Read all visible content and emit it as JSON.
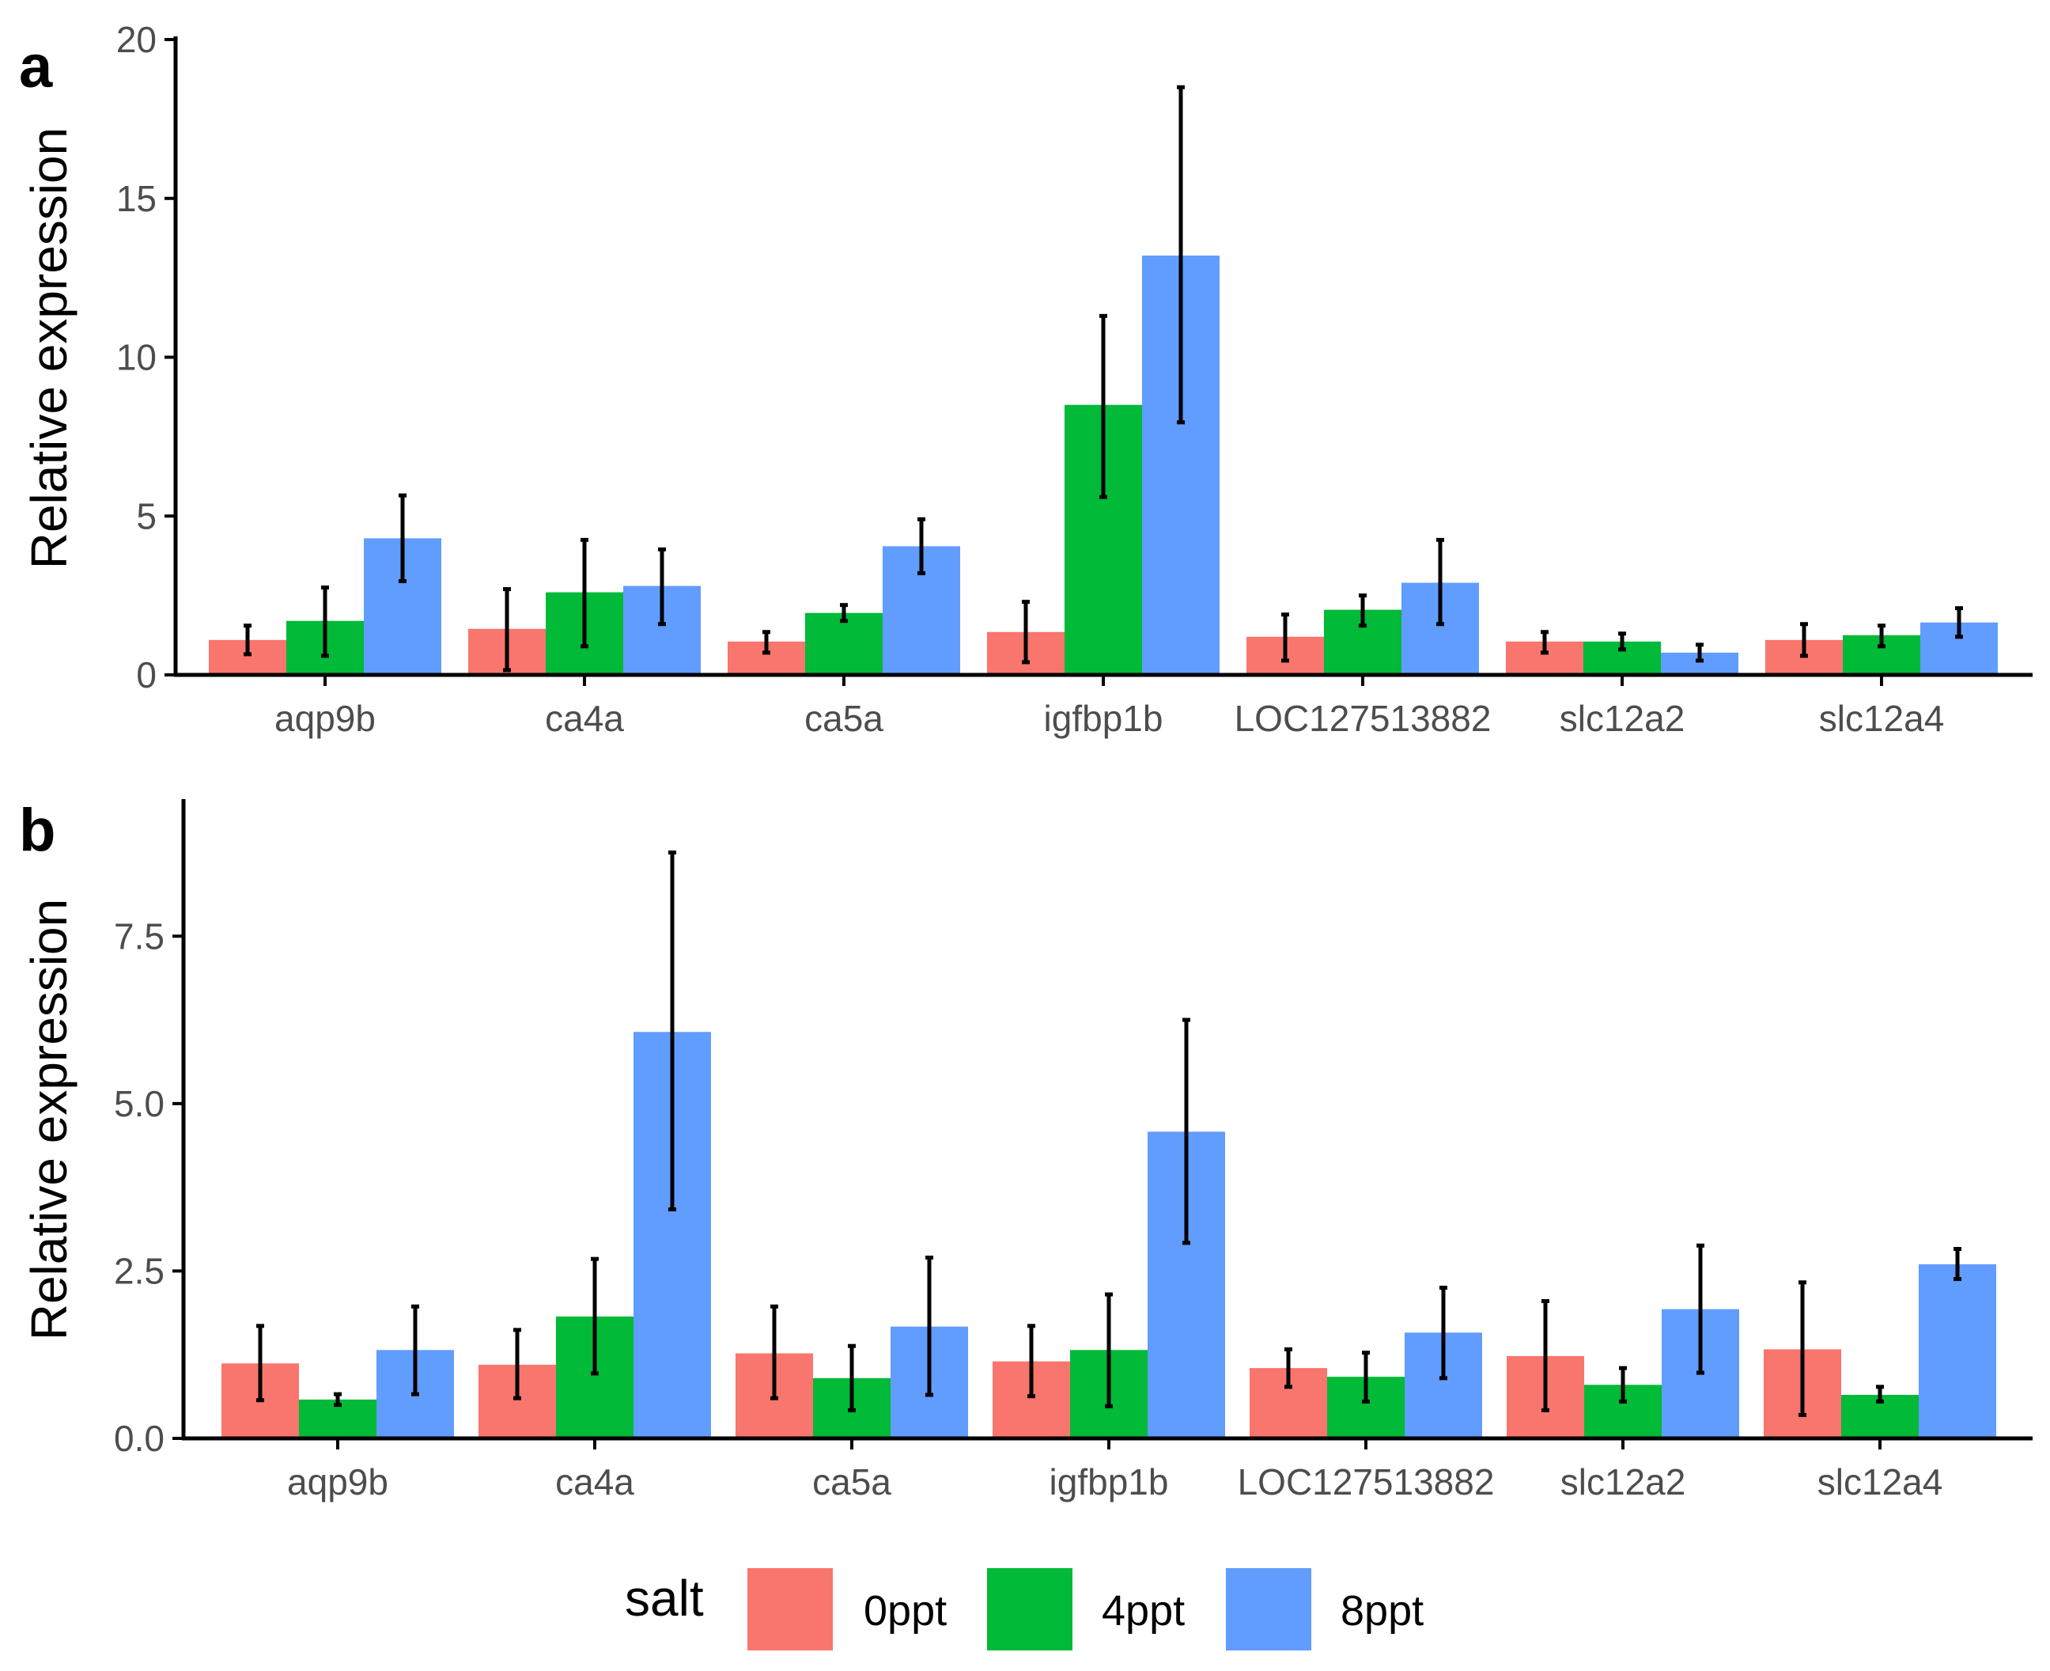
{
  "chart_data": [
    {
      "type": "bar",
      "panel": "a",
      "ylabel": "Relative expression",
      "ylim": [
        0,
        20
      ],
      "yticks": [
        0,
        5,
        10,
        15,
        20
      ],
      "ytick_labels": [
        "0",
        "5",
        "10",
        "15",
        "20"
      ],
      "categories": [
        "aqp9b",
        "ca4a",
        "ca5a",
        "igfbp1b",
        "LOC127513882",
        "slc12a2",
        "slc12a4"
      ],
      "series": [
        {
          "name": "0ppt",
          "values": [
            1.1,
            1.45,
            1.05,
            1.35,
            1.2,
            1.05,
            1.1
          ],
          "err_low": [
            0.65,
            0.15,
            0.7,
            0.4,
            0.45,
            0.7,
            0.6
          ],
          "err_high": [
            1.55,
            2.7,
            1.35,
            2.3,
            1.9,
            1.35,
            1.6
          ]
        },
        {
          "name": "4ppt",
          "values": [
            1.7,
            2.6,
            1.95,
            8.5,
            2.05,
            1.05,
            1.25
          ],
          "err_low": [
            0.6,
            0.9,
            1.7,
            5.6,
            1.55,
            0.8,
            0.9
          ],
          "err_high": [
            2.75,
            4.25,
            2.2,
            11.3,
            2.5,
            1.3,
            1.55
          ]
        },
        {
          "name": "8ppt",
          "values": [
            4.3,
            2.8,
            4.05,
            13.2,
            2.9,
            0.7,
            1.65
          ],
          "err_low": [
            2.95,
            1.6,
            3.2,
            7.95,
            1.6,
            0.45,
            1.2
          ],
          "err_high": [
            5.65,
            3.95,
            4.9,
            18.5,
            4.25,
            0.95,
            2.1
          ]
        }
      ]
    },
    {
      "type": "bar",
      "panel": "b",
      "ylabel": "Relative expression",
      "ylim": [
        0,
        9.5
      ],
      "yticks": [
        0,
        2.5,
        5,
        7.5
      ],
      "ytick_labels": [
        "0.0",
        "2.5",
        "5.0",
        "7.5"
      ],
      "categories": [
        "aqp9b",
        "ca4a",
        "ca5a",
        "igfbp1b",
        "LOC127513882",
        "slc12a2",
        "slc12a4"
      ],
      "series": [
        {
          "name": "0ppt",
          "values": [
            1.12,
            1.1,
            1.27,
            1.15,
            1.05,
            1.23,
            1.33
          ],
          "err_low": [
            0.57,
            0.6,
            0.6,
            0.63,
            0.77,
            0.42,
            0.35
          ],
          "err_high": [
            1.68,
            1.62,
            1.97,
            1.68,
            1.33,
            2.05,
            2.33
          ]
        },
        {
          "name": "4ppt",
          "values": [
            0.58,
            1.82,
            0.9,
            1.32,
            0.92,
            0.8,
            0.65
          ],
          "err_low": [
            0.5,
            0.97,
            0.42,
            0.48,
            0.55,
            0.55,
            0.55
          ],
          "err_high": [
            0.66,
            2.68,
            1.38,
            2.15,
            1.28,
            1.05,
            0.77
          ]
        },
        {
          "name": "8ppt",
          "values": [
            1.32,
            6.07,
            1.67,
            4.58,
            1.58,
            1.93,
            2.6
          ],
          "err_low": [
            0.66,
            3.42,
            0.65,
            2.92,
            0.9,
            0.98,
            2.38
          ],
          "err_high": [
            1.97,
            8.75,
            2.7,
            6.25,
            2.25,
            2.88,
            2.83
          ]
        }
      ]
    }
  ],
  "legend": {
    "title": "salt",
    "entries": [
      {
        "label": "0ppt",
        "color": "#F8766D"
      },
      {
        "label": "4ppt",
        "color": "#00BA38"
      },
      {
        "label": "8ppt",
        "color": "#619CFF"
      }
    ]
  },
  "colors": {
    "0ppt": "#F8766D",
    "4ppt": "#00BA38",
    "8ppt": "#619CFF",
    "axis": "#000000",
    "tick_text": "#4d4d4d"
  }
}
